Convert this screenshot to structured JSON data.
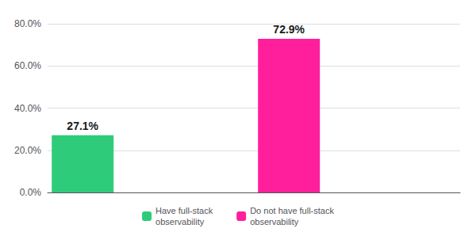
{
  "chart_data": {
    "type": "bar",
    "categories": [
      "Have full-stack\nobservability",
      "Do not have full-stack\nobservability"
    ],
    "values": [
      27.1,
      72.9
    ],
    "value_labels": [
      "27.1%",
      "72.9%"
    ],
    "colors": [
      "#2ecc7a",
      "#ff1f9c"
    ],
    "data_labels": true,
    "ylim": [
      0,
      80
    ],
    "yticks": [
      {
        "value": 0,
        "label": "0.0%"
      },
      {
        "value": 20,
        "label": "20.0%"
      },
      {
        "value": 40,
        "label": "40.0%"
      },
      {
        "value": 60,
        "label": "60.0%"
      },
      {
        "value": 80,
        "label": "80.0%"
      }
    ],
    "grid": true,
    "tick_labels": "y",
    "legend": "bottom"
  }
}
